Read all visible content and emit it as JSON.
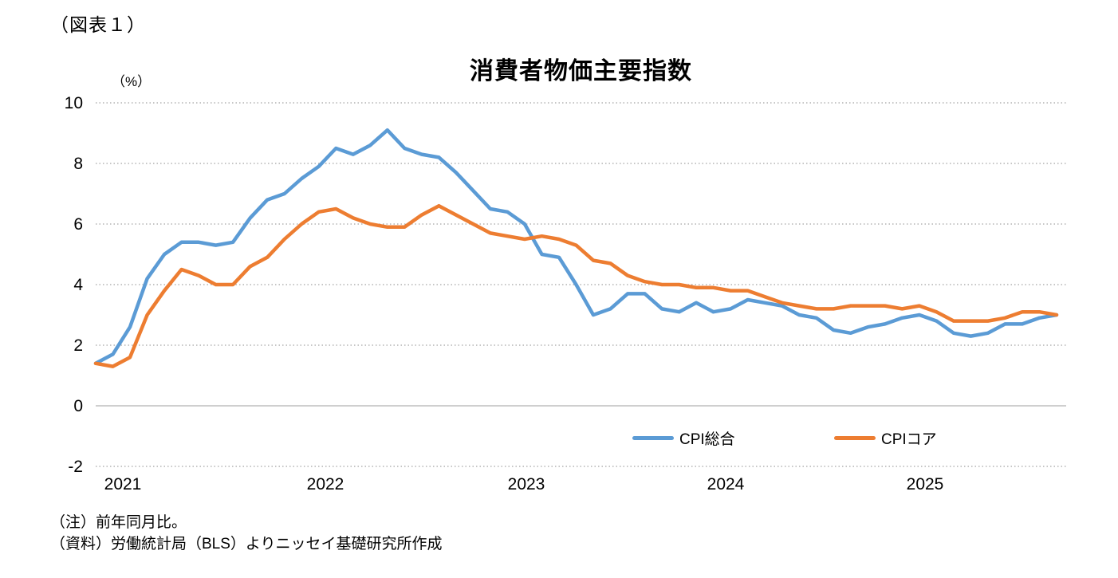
{
  "page": {
    "caption": "（図表１）",
    "notes": {
      "note1": "（注）前年同月比。",
      "note2": "（資料）労働統計局（BLS）よりニッセイ基礎研究所作成"
    }
  },
  "chart_data": {
    "type": "line",
    "title": "消費者物価主要指数",
    "unit_label": "（%）",
    "xlabel": "",
    "ylabel": "%",
    "ylim": [
      -2,
      10
    ],
    "yticks": [
      10,
      8,
      6,
      4,
      2,
      0,
      -2
    ],
    "grid": "horizontal dotted, solid zero line",
    "legend_position": "bottom inside plot",
    "x_year_labels": [
      "2021",
      "2022",
      "2023",
      "2024",
      "2025"
    ],
    "x": [
      "2021-01",
      "2021-02",
      "2021-03",
      "2021-04",
      "2021-05",
      "2021-06",
      "2021-07",
      "2021-08",
      "2021-09",
      "2021-10",
      "2021-11",
      "2021-12",
      "2022-01",
      "2022-02",
      "2022-03",
      "2022-04",
      "2022-05",
      "2022-06",
      "2022-07",
      "2022-08",
      "2022-09",
      "2022-10",
      "2022-11",
      "2022-12",
      "2023-01",
      "2023-02",
      "2023-03",
      "2023-04",
      "2023-05",
      "2023-06",
      "2023-07",
      "2023-08",
      "2023-09",
      "2023-10",
      "2023-11",
      "2023-12",
      "2024-01",
      "2024-02",
      "2024-03",
      "2024-04",
      "2024-05",
      "2024-06",
      "2024-07",
      "2024-08",
      "2024-09",
      "2024-10",
      "2024-11",
      "2024-12",
      "2025-01",
      "2025-02",
      "2025-03",
      "2025-04",
      "2025-05",
      "2025-06",
      "2025-07",
      "2025-08",
      "2025-09"
    ],
    "series": [
      {
        "name": "CPI総合",
        "color": "#5B9BD5",
        "values": [
          1.4,
          1.7,
          2.6,
          4.2,
          5.0,
          5.4,
          5.4,
          5.3,
          5.4,
          6.2,
          6.8,
          7.0,
          7.5,
          7.9,
          8.5,
          8.3,
          8.6,
          9.1,
          8.5,
          8.3,
          8.2,
          7.7,
          7.1,
          6.5,
          6.4,
          6.0,
          5.0,
          4.9,
          4.0,
          3.0,
          3.2,
          3.7,
          3.7,
          3.2,
          3.1,
          3.4,
          3.1,
          3.2,
          3.5,
          3.4,
          3.3,
          3.0,
          2.9,
          2.5,
          2.4,
          2.6,
          2.7,
          2.9,
          3.0,
          2.8,
          2.4,
          2.3,
          2.4,
          2.7,
          2.7,
          2.9,
          3.0
        ]
      },
      {
        "name": "CPIコア",
        "color": "#ED7D31",
        "values": [
          1.4,
          1.3,
          1.6,
          3.0,
          3.8,
          4.5,
          4.3,
          4.0,
          4.0,
          4.6,
          4.9,
          5.5,
          6.0,
          6.4,
          6.5,
          6.2,
          6.0,
          5.9,
          5.9,
          6.3,
          6.6,
          6.3,
          6.0,
          5.7,
          5.6,
          5.5,
          5.6,
          5.5,
          5.3,
          4.8,
          4.7,
          4.3,
          4.1,
          4.0,
          4.0,
          3.9,
          3.9,
          3.8,
          3.8,
          3.6,
          3.4,
          3.3,
          3.2,
          3.2,
          3.3,
          3.3,
          3.3,
          3.2,
          3.3,
          3.1,
          2.8,
          2.8,
          2.8,
          2.9,
          3.1,
          3.1,
          3.0
        ]
      }
    ],
    "colors": {
      "gridline": "#8c8c8c",
      "zero_axis": "#bfbfbf",
      "text": "#000000"
    }
  }
}
